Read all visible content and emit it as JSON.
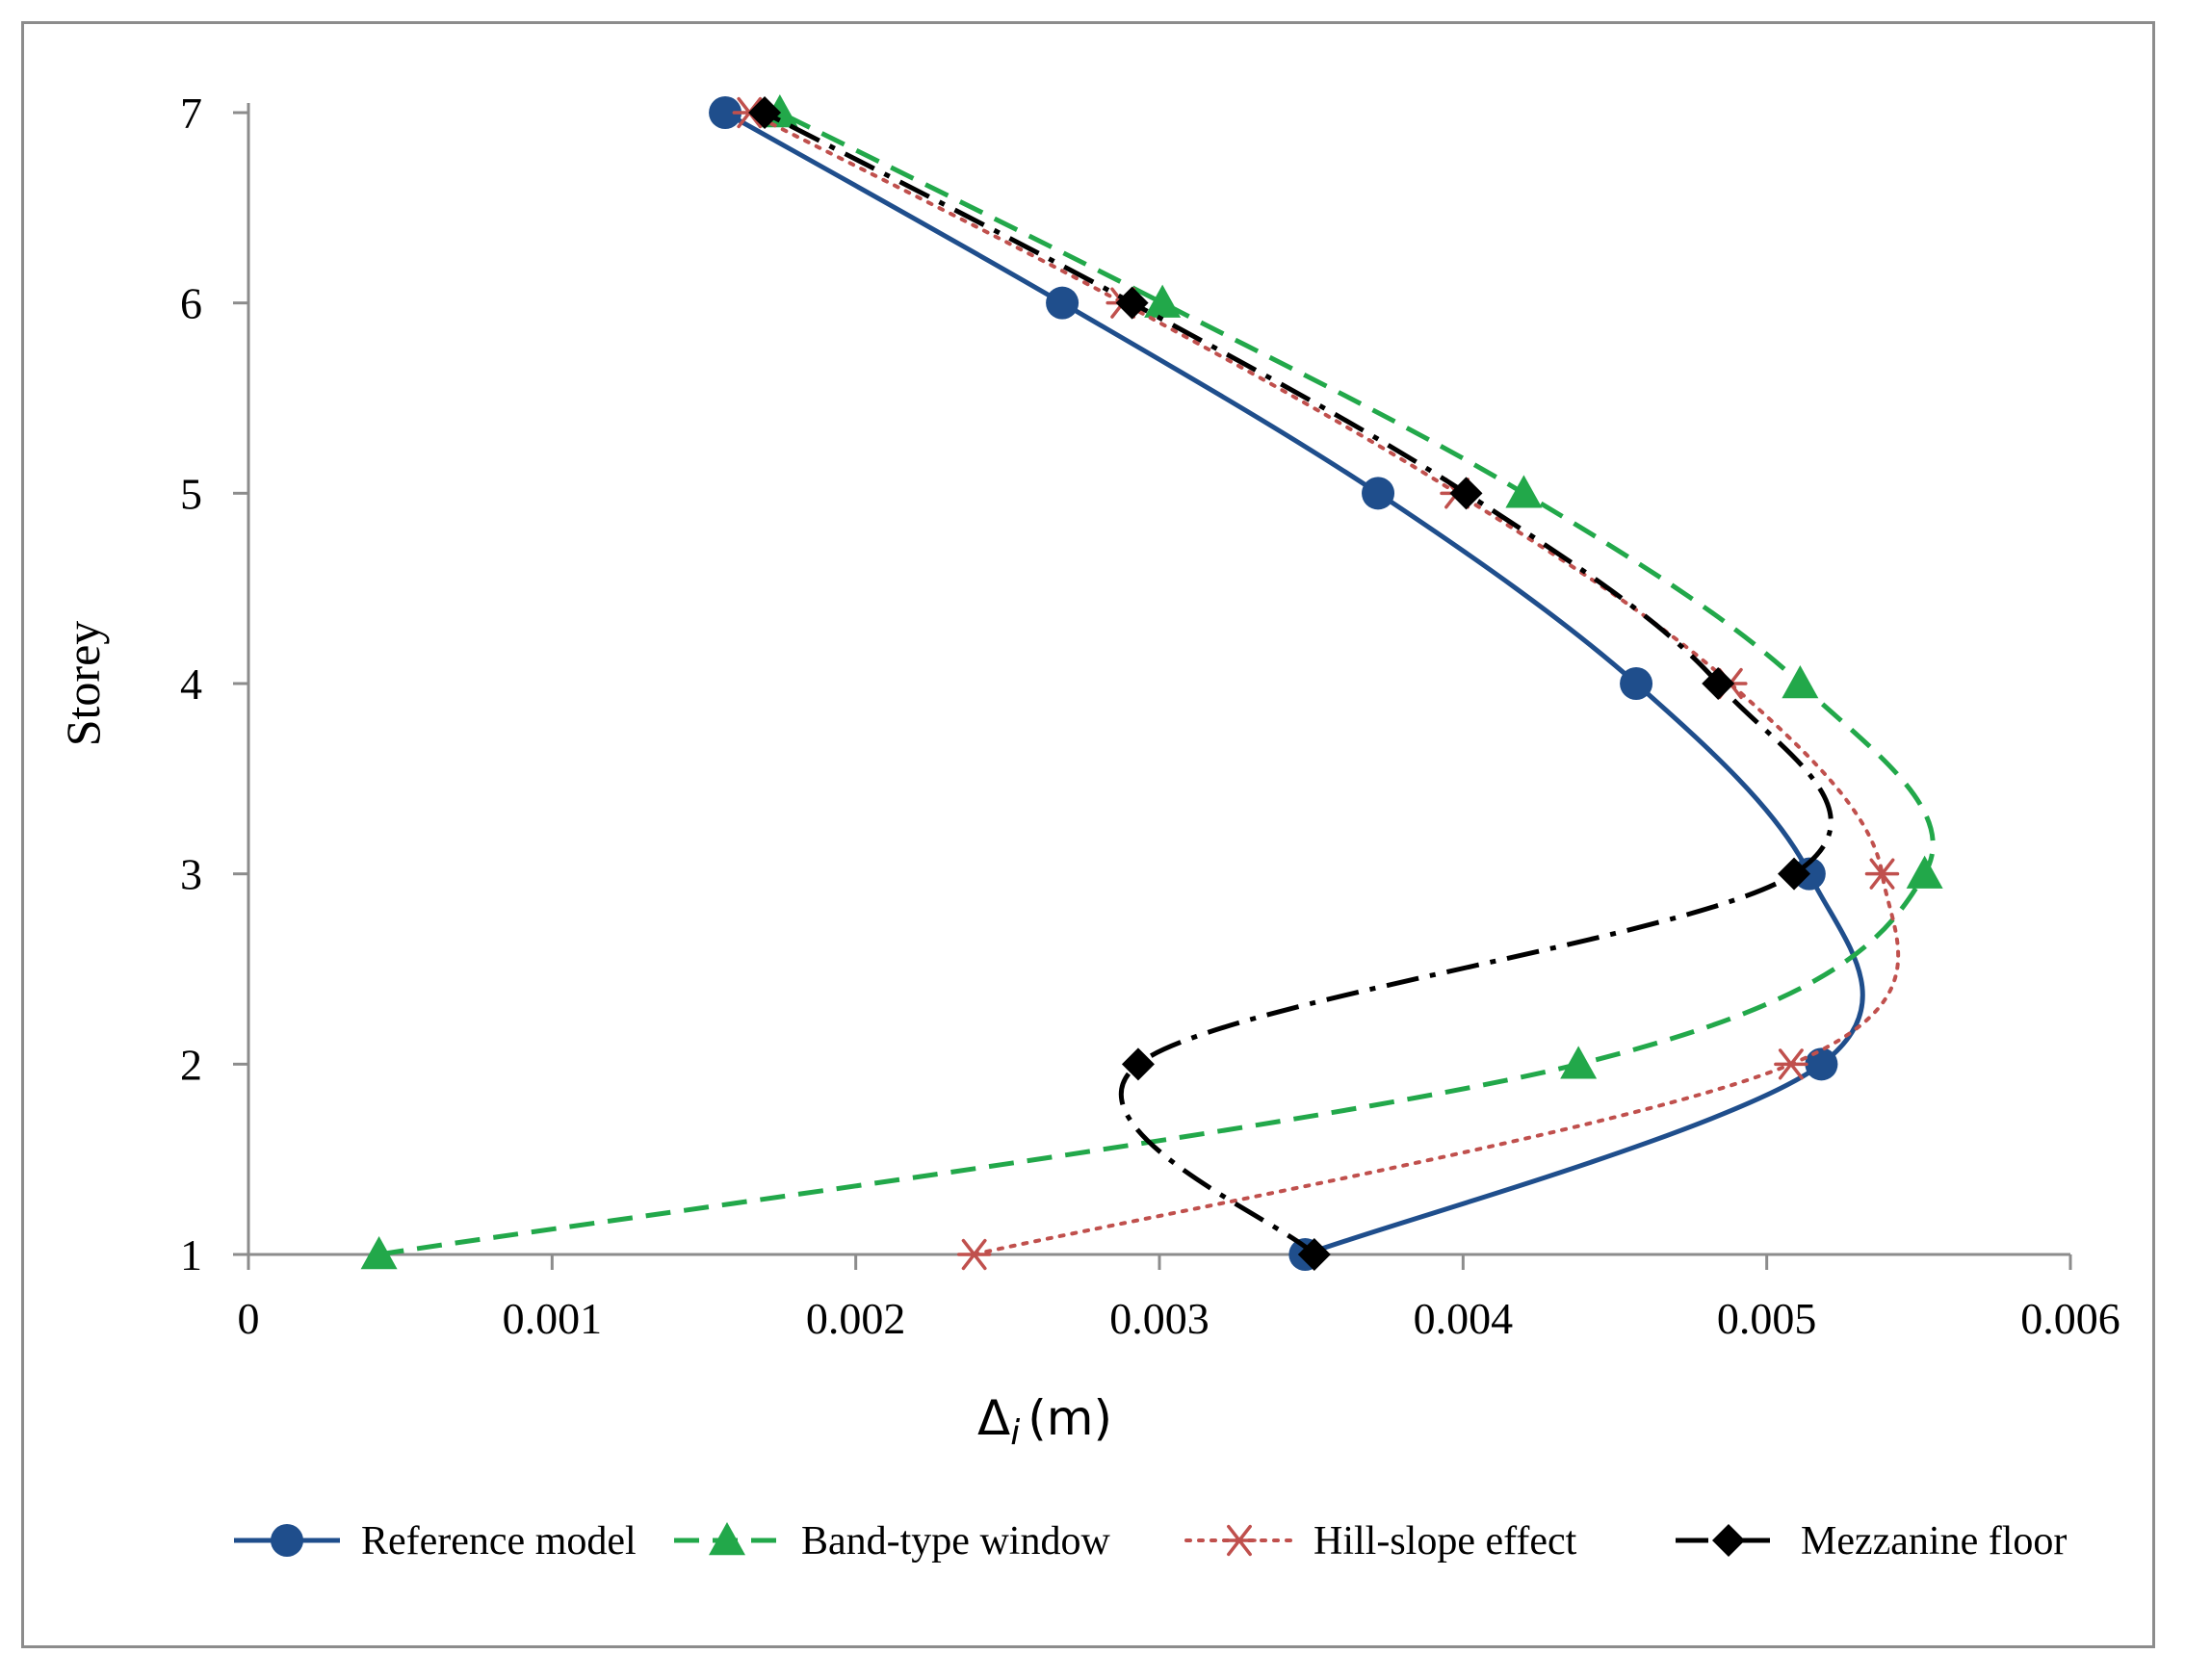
{
  "chart_data": {
    "type": "line",
    "xlabel": "Δ",
    "xlabel_subscript": "i",
    "xlabel_unit": "(m)",
    "ylabel": "Storey",
    "xlim": [
      0,
      0.006
    ],
    "ylim": [
      1,
      7
    ],
    "x_ticks": [
      "0",
      "0.001",
      "0.002",
      "0.003",
      "0.004",
      "0.005",
      "0.006"
    ],
    "y_ticks": [
      "1",
      "2",
      "3",
      "4",
      "5",
      "6",
      "7"
    ],
    "legend_position": "bottom",
    "grid": false,
    "series": [
      {
        "name": "Reference model",
        "color": "#1f4e8c",
        "line_style": "solid",
        "marker": "circle",
        "points": [
          [
            0.00348,
            1
          ],
          [
            0.00518,
            2
          ],
          [
            0.00514,
            3
          ],
          [
            0.00457,
            4
          ],
          [
            0.00372,
            5
          ],
          [
            0.00268,
            6
          ],
          [
            0.00157,
            7
          ]
        ]
      },
      {
        "name": "Band-type window",
        "color": "#22a84a",
        "line_style": "dashed",
        "marker": "triangle",
        "points": [
          [
            0.00043,
            1
          ],
          [
            0.00438,
            2
          ],
          [
            0.00552,
            3
          ],
          [
            0.00511,
            4
          ],
          [
            0.0042,
            5
          ],
          [
            0.00301,
            6
          ],
          [
            0.00175,
            7
          ]
        ]
      },
      {
        "name": "Hill-slope effect",
        "color": "#c0504d",
        "line_style": "dotted",
        "marker": "asterisk",
        "points": [
          [
            0.00239,
            1
          ],
          [
            0.00508,
            2
          ],
          [
            0.00538,
            3
          ],
          [
            0.00488,
            4
          ],
          [
            0.00398,
            5
          ],
          [
            0.00288,
            6
          ],
          [
            0.00165,
            7
          ]
        ]
      },
      {
        "name": "Mezzanine floor",
        "color": "#000000",
        "line_style": "dashdot",
        "marker": "diamond",
        "points": [
          [
            0.00351,
            1
          ],
          [
            0.00293,
            2
          ],
          [
            0.00509,
            3
          ],
          [
            0.00484,
            4
          ],
          [
            0.00401,
            5
          ],
          [
            0.00291,
            6
          ],
          [
            0.0017,
            7
          ]
        ]
      }
    ]
  }
}
